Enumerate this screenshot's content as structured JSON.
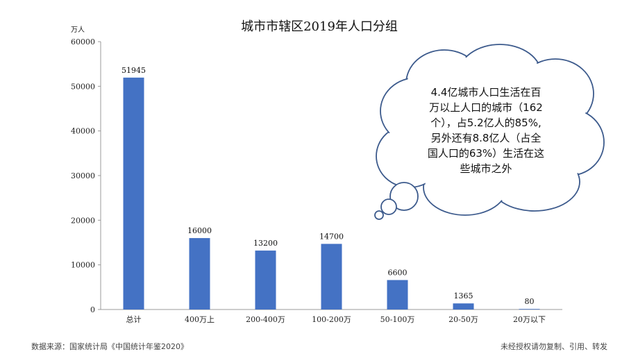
{
  "chart_data": {
    "type": "bar",
    "title": "城市市辖区2019年人口分组",
    "ylabel": "万人",
    "xlabel": "",
    "ylim": [
      0,
      60000
    ],
    "yticks": [
      0,
      10000,
      20000,
      30000,
      40000,
      50000,
      60000
    ],
    "categories": [
      "总计",
      "400万上",
      "200-400万",
      "100-200万",
      "50-100万",
      "20-50万",
      "20万以下"
    ],
    "values": [
      51945,
      16000,
      13200,
      14700,
      6600,
      1365,
      80
    ],
    "bar_color": "#4472C4",
    "grid": false,
    "annotation_lines": [
      "4.4亿城市人口生活在百",
      "万以上人口的城市（162",
      "个），占5.2亿人的85%,",
      "另外还有8.8亿人（占全",
      "国人口的63%）生活在这",
      "些城市之外"
    ]
  },
  "footer": {
    "source": "数据来源：国家统计局《中国统计年鉴2020》",
    "rights": "未经授权请勿复制、引用、转发"
  }
}
